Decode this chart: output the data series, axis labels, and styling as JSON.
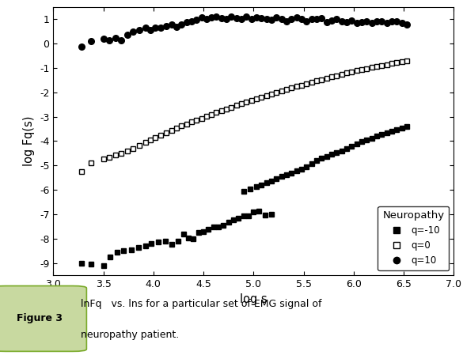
{
  "xlim": [
    3.0,
    7.0
  ],
  "ylim": [
    -9.5,
    1.5
  ],
  "xlabel": "log s",
  "ylabel": "log Fq(s)",
  "xticks": [
    3.0,
    3.5,
    4.0,
    4.5,
    5.0,
    5.5,
    6.0,
    6.5,
    7.0
  ],
  "yticks": [
    -9,
    -8,
    -7,
    -6,
    -5,
    -4,
    -3,
    -2,
    -1,
    0,
    1
  ],
  "legend_title": "Neuropathy",
  "legend_entries": [
    "q=-10",
    "q=0",
    "q=10"
  ],
  "q10_x": [
    3.28,
    3.38,
    3.5,
    3.56,
    3.62,
    3.68,
    3.74,
    3.8,
    3.86,
    3.92,
    3.97,
    4.02,
    4.07,
    4.13,
    4.18,
    4.23,
    4.28,
    4.33,
    4.38,
    4.43,
    4.48,
    4.53,
    4.58,
    4.63,
    4.68,
    4.73,
    4.78,
    4.83,
    4.88,
    4.93,
    4.98,
    5.03,
    5.08,
    5.13,
    5.18,
    5.23,
    5.28,
    5.33,
    5.38,
    5.43,
    5.48,
    5.53,
    5.58,
    5.63,
    5.68,
    5.73,
    5.78,
    5.83,
    5.88,
    5.93,
    5.98,
    6.03,
    6.08,
    6.13,
    6.18,
    6.23,
    6.28,
    6.33,
    6.38,
    6.43,
    6.48,
    6.53
  ],
  "q10_y": [
    -0.12,
    0.12,
    0.2,
    0.15,
    0.25,
    0.15,
    0.35,
    0.5,
    0.55,
    0.65,
    0.55,
    0.65,
    0.65,
    0.72,
    0.8,
    0.7,
    0.8,
    0.88,
    0.92,
    0.98,
    1.08,
    1.0,
    1.08,
    1.12,
    1.05,
    1.0,
    1.12,
    1.05,
    1.0,
    1.1,
    1.02,
    1.07,
    1.04,
    1.0,
    0.98,
    1.07,
    1.0,
    0.93,
    1.02,
    1.07,
    1.0,
    0.93,
    1.02,
    1.0,
    1.05,
    0.88,
    0.95,
    1.02,
    0.9,
    0.87,
    0.95,
    0.85,
    0.88,
    0.92,
    0.85,
    0.9,
    0.93,
    0.85,
    0.92,
    0.9,
    0.85,
    0.8
  ],
  "q0_x": [
    3.28,
    3.38,
    3.5,
    3.56,
    3.62,
    3.68,
    3.74,
    3.8,
    3.86,
    3.92,
    3.97,
    4.02,
    4.07,
    4.13,
    4.18,
    4.23,
    4.28,
    4.33,
    4.38,
    4.43,
    4.48,
    4.53,
    4.58,
    4.63,
    4.68,
    4.73,
    4.78,
    4.83,
    4.88,
    4.93,
    4.98,
    5.03,
    5.08,
    5.13,
    5.18,
    5.23,
    5.28,
    5.33,
    5.38,
    5.43,
    5.48,
    5.53,
    5.58,
    5.63,
    5.68,
    5.73,
    5.78,
    5.83,
    5.88,
    5.93,
    5.98,
    6.03,
    6.08,
    6.13,
    6.18,
    6.23,
    6.28,
    6.33,
    6.38,
    6.43,
    6.48,
    6.53
  ],
  "q0_y": [
    -5.25,
    -4.88,
    -4.72,
    -4.65,
    -4.58,
    -4.5,
    -4.4,
    -4.3,
    -4.18,
    -4.05,
    -3.95,
    -3.85,
    -3.75,
    -3.65,
    -3.55,
    -3.45,
    -3.38,
    -3.3,
    -3.22,
    -3.14,
    -3.06,
    -2.98,
    -2.9,
    -2.83,
    -2.75,
    -2.68,
    -2.61,
    -2.54,
    -2.47,
    -2.4,
    -2.33,
    -2.26,
    -2.2,
    -2.13,
    -2.07,
    -2.0,
    -1.94,
    -1.88,
    -1.82,
    -1.76,
    -1.7,
    -1.64,
    -1.58,
    -1.52,
    -1.47,
    -1.41,
    -1.36,
    -1.31,
    -1.26,
    -1.21,
    -1.16,
    -1.11,
    -1.06,
    -1.02,
    -0.98,
    -0.94,
    -0.9,
    -0.86,
    -0.82,
    -0.78,
    -0.74,
    -0.7
  ],
  "qm10_lower_x": [
    3.28,
    3.38,
    3.5,
    3.57,
    3.64,
    3.7,
    3.78,
    3.85,
    3.92,
    3.98,
    4.05,
    4.12,
    4.18,
    4.25,
    4.3,
    4.35,
    4.4,
    4.45,
    4.5,
    4.55,
    4.6,
    4.65,
    4.7,
    4.75,
    4.8,
    4.85,
    4.9,
    4.95,
    5.0,
    5.05,
    5.12,
    5.18
  ],
  "qm10_lower_y": [
    -9.0,
    -9.05,
    -9.1,
    -8.75,
    -8.55,
    -8.5,
    -8.45,
    -8.38,
    -8.3,
    -8.2,
    -8.15,
    -8.1,
    -8.22,
    -8.12,
    -7.8,
    -7.96,
    -8.02,
    -7.75,
    -7.7,
    -7.62,
    -7.52,
    -7.52,
    -7.45,
    -7.32,
    -7.22,
    -7.18,
    -7.07,
    -7.07,
    -6.92,
    -6.88,
    -7.05,
    -7.0
  ],
  "qm10_upper_x": [
    4.9,
    4.97,
    5.03,
    5.08,
    5.13,
    5.18,
    5.23,
    5.28,
    5.33,
    5.38,
    5.43,
    5.48,
    5.53,
    5.58,
    5.63,
    5.68,
    5.73,
    5.78,
    5.83,
    5.88,
    5.93,
    5.98,
    6.03,
    6.08,
    6.13,
    6.18,
    6.23,
    6.28,
    6.33,
    6.38,
    6.43,
    6.48,
    6.53
  ],
  "qm10_upper_y": [
    -6.05,
    -5.95,
    -5.87,
    -5.8,
    -5.72,
    -5.65,
    -5.55,
    -5.45,
    -5.38,
    -5.3,
    -5.22,
    -5.15,
    -5.05,
    -4.92,
    -4.8,
    -4.7,
    -4.62,
    -4.55,
    -4.47,
    -4.4,
    -4.32,
    -4.22,
    -4.12,
    -4.02,
    -3.95,
    -3.88,
    -3.8,
    -3.72,
    -3.65,
    -3.58,
    -3.52,
    -3.45,
    -3.4
  ],
  "caption_label": "Figure 3",
  "caption_label_bg": "#c8d9a0",
  "caption_label_border": "#7aaa2a",
  "caption_bg": "#f5f7ef",
  "figure_bg": "#ffffff"
}
